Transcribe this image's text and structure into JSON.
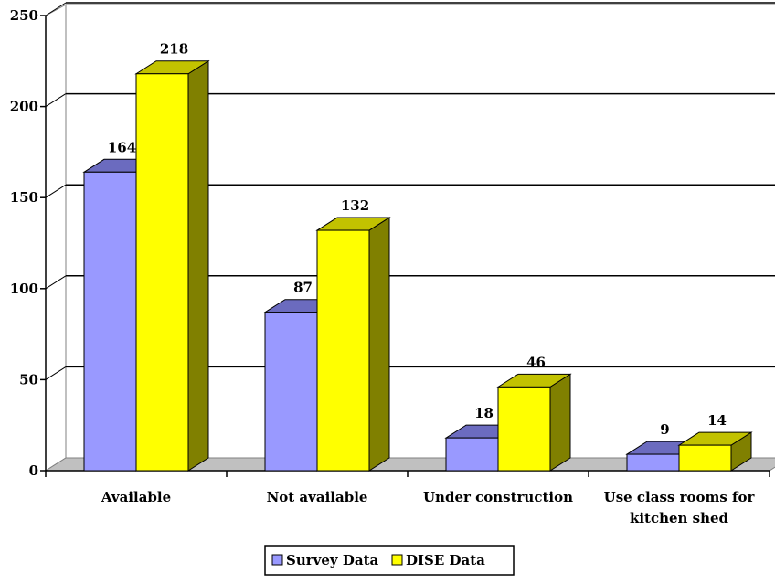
{
  "chart_data": {
    "type": "bar",
    "categories": [
      [
        "Available"
      ],
      [
        "Not available"
      ],
      [
        "Under construction"
      ],
      [
        "Use class rooms for",
        "kitchen shed"
      ]
    ],
    "series": [
      {
        "name": "Survey Data",
        "values": [
          164,
          87,
          18,
          9
        ],
        "color": "#9999ff",
        "top_color": "#6b6bbf",
        "side_color": "#4c4c9a"
      },
      {
        "name": "DISE Data",
        "values": [
          218,
          132,
          46,
          14
        ],
        "color": "#ffff00",
        "top_color": "#c2c200",
        "side_color": "#808000"
      }
    ],
    "y_ticks": [
      "0",
      "50",
      "100",
      "150",
      "200",
      "250"
    ],
    "ylim": [
      0,
      250
    ],
    "grid": true,
    "three_d": true,
    "legend_position": "bottom-center"
  }
}
